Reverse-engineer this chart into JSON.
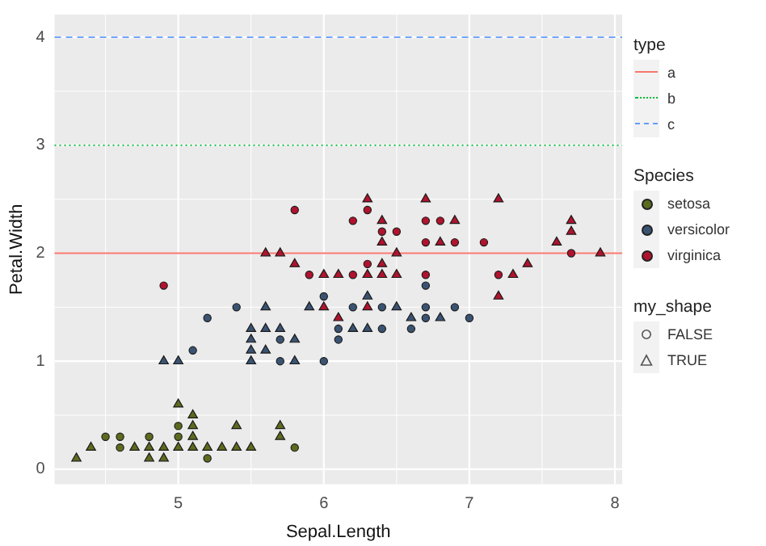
{
  "chart_data": {
    "type": "scatter",
    "xlabel": "Sepal.Length",
    "ylabel": "Petal.Width",
    "xlim": [
      4.15,
      8.05
    ],
    "ylim": [
      -0.14,
      4.21
    ],
    "xticks": [
      5,
      6,
      7,
      8
    ],
    "yticks": [
      0,
      1,
      2,
      3,
      4
    ],
    "grid": true,
    "legend": "right",
    "legend_title": "Species",
    "annotations": [
      "type",
      "my_shape",
      "FALSE",
      "TRUE"
    ],
    "ref_lines": [
      {
        "axis": "y",
        "value": 2,
        "label": "a",
        "color": "#f8766d",
        "line_style": "solid"
      },
      {
        "axis": "y",
        "value": 3,
        "label": "b",
        "color": "#00ba38",
        "line_style": "dotted"
      },
      {
        "axis": "y",
        "value": 4,
        "label": "c",
        "color": "#619cff",
        "line_style": "dashed"
      }
    ],
    "series": [
      {
        "name": "setosa",
        "color": "#5c6b1e",
        "marker": "circle",
        "x": [
          4.5,
          4.6,
          4.6,
          4.8,
          5.0,
          5.0,
          5.2,
          5.8
        ],
        "values": [
          0.3,
          0.3,
          0.2,
          0.3,
          0.4,
          0.3,
          0.1,
          0.2
        ]
      },
      {
        "name": "versicolor",
        "color": "#3a5372",
        "marker": "circle",
        "x": [
          5.1,
          5.2,
          5.4,
          5.7,
          5.7,
          6.0,
          6.0,
          6.1,
          6.1,
          6.2,
          6.4,
          6.4,
          6.6,
          6.7,
          6.7,
          6.7,
          6.9,
          7.0
        ],
        "values": [
          1.1,
          1.4,
          1.5,
          1.2,
          1.0,
          1.6,
          1.0,
          1.3,
          1.2,
          1.5,
          1.5,
          1.3,
          1.3,
          1.7,
          1.5,
          1.4,
          1.5,
          1.4
        ]
      },
      {
        "name": "virginica",
        "color": "#b0132e",
        "marker": "circle",
        "x": [
          4.9,
          5.8,
          5.9,
          6.2,
          6.2,
          6.3,
          6.3,
          6.4,
          6.5,
          6.7,
          6.7,
          6.7,
          6.8,
          6.9,
          7.1,
          7.2,
          7.7
        ],
        "values": [
          1.7,
          2.4,
          1.8,
          2.3,
          1.8,
          2.4,
          1.9,
          2.2,
          2.2,
          2.3,
          2.1,
          1.8,
          2.3,
          2.1,
          2.1,
          1.8,
          2.0
        ]
      },
      {
        "color": "#5c6b1e",
        "marker": "triangle",
        "x": [
          4.3,
          4.4,
          4.7,
          4.8,
          4.8,
          4.9,
          4.9,
          5.0,
          5.0,
          5.1,
          5.1,
          5.1,
          5.1,
          5.2,
          5.3,
          5.4,
          5.4,
          5.5,
          5.7,
          5.7
        ],
        "values": [
          0.1,
          0.2,
          0.2,
          0.2,
          0.1,
          0.2,
          0.1,
          0.6,
          0.2,
          0.5,
          0.4,
          0.3,
          0.2,
          0.2,
          0.2,
          0.4,
          0.2,
          0.2,
          0.4,
          0.3
        ]
      },
      {
        "color": "#3a5372",
        "marker": "triangle",
        "x": [
          4.9,
          5.0,
          5.5,
          5.5,
          5.5,
          5.5,
          5.6,
          5.6,
          5.6,
          5.7,
          5.8,
          5.8,
          5.9,
          6.2,
          6.3,
          6.3,
          6.5,
          6.6,
          6.8
        ],
        "values": [
          1.0,
          1.0,
          1.3,
          1.2,
          1.1,
          1.0,
          1.3,
          1.1,
          1.5,
          1.3,
          1.2,
          1.0,
          1.5,
          1.3,
          1.6,
          1.3,
          1.5,
          1.4,
          1.4
        ]
      },
      {
        "color": "#b0132e",
        "marker": "triangle",
        "x": [
          5.6,
          5.7,
          5.8,
          6.0,
          6.0,
          6.1,
          6.1,
          6.3,
          6.3,
          6.3,
          6.4,
          6.4,
          6.4,
          6.4,
          6.5,
          6.5,
          6.7,
          6.8,
          6.9,
          7.2,
          7.2,
          7.3,
          7.4,
          7.6,
          7.7,
          7.7,
          7.9
        ],
        "values": [
          2.0,
          2.0,
          1.9,
          1.8,
          1.5,
          1.8,
          1.4,
          2.5,
          1.8,
          1.5,
          2.3,
          2.1,
          1.9,
          1.8,
          2.0,
          1.8,
          2.5,
          2.1,
          2.3,
          2.5,
          1.6,
          1.8,
          1.9,
          2.1,
          2.3,
          2.2,
          2.0
        ]
      }
    ]
  }
}
